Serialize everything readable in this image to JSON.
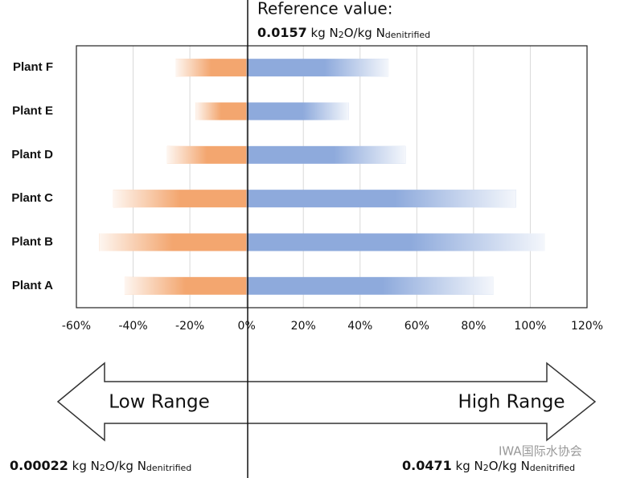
{
  "chart_data": {
    "type": "tornado",
    "categories": [
      "Plant F",
      "Plant E",
      "Plant D",
      "Plant C",
      "Plant B",
      "Plant A"
    ],
    "series": [
      {
        "color": "#f3a66f",
        "values": [
          -25,
          -18,
          -28,
          -47,
          -52,
          -43
        ]
      },
      {
        "color": "#8eaadc",
        "values": [
          50,
          36,
          56,
          95,
          105,
          87
        ]
      }
    ],
    "xlim": [
      -60,
      120
    ],
    "xticks": [
      {
        "value": -60,
        "label": "-60%"
      },
      {
        "value": -40,
        "label": "-40%"
      },
      {
        "value": -20,
        "label": "-20%"
      },
      {
        "value": 0,
        "label": "0%"
      },
      {
        "value": 20,
        "label": "20%"
      },
      {
        "value": 40,
        "label": "40%"
      },
      {
        "value": 60,
        "label": "60%"
      },
      {
        "value": 80,
        "label": "80%"
      },
      {
        "value": 100,
        "label": "100%"
      },
      {
        "value": 120,
        "label": "120%"
      }
    ],
    "grid": true,
    "reference": {
      "title": "Reference value:",
      "value": "0.0157",
      "unit": [
        "kg N",
        "2",
        "O/kg N",
        "denitrified"
      ]
    },
    "low": {
      "label": "Low Range",
      "value": "0.00022",
      "unit": [
        "kg N",
        "2",
        "O/kg N",
        "denitrified"
      ]
    },
    "high": {
      "label": "High Range",
      "value": "0.0471",
      "unit": [
        "kg N",
        "2",
        "O/kg N",
        "denitrified"
      ]
    },
    "watermark": "IWA国际水协会"
  }
}
